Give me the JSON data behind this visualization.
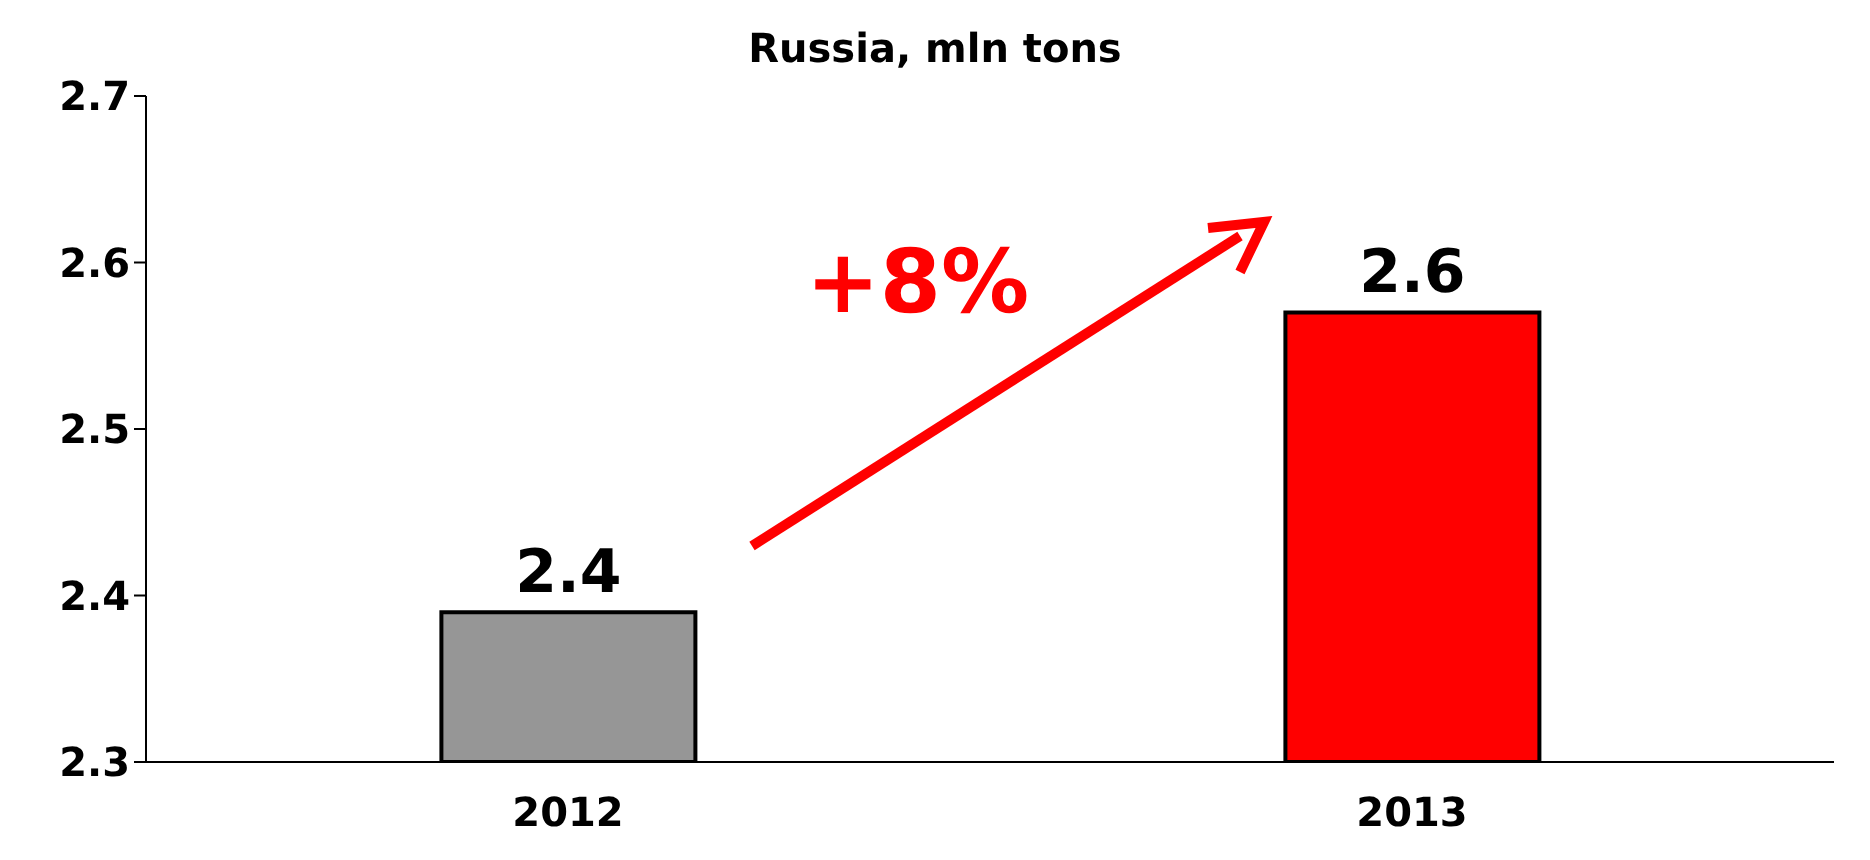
{
  "chart_data": {
    "type": "bar",
    "title": "Russia, mln tons",
    "categories": [
      "2012",
      "2013"
    ],
    "values": [
      2.39,
      2.57
    ],
    "colors": [
      "#969696",
      "#ff0000"
    ],
    "value_labels": [
      "2.4",
      "2.6"
    ],
    "ylim": [
      2.3,
      2.7
    ],
    "yticks": [
      2.3,
      2.4,
      2.5,
      2.6,
      2.7
    ],
    "grid": false,
    "annotations": [
      "+8%"
    ]
  }
}
